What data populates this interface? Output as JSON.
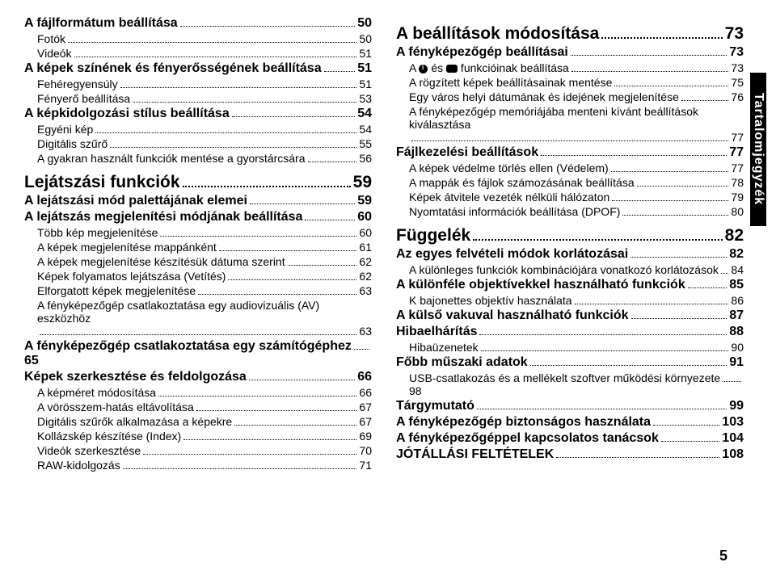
{
  "sideTab": "Tartalomjegyzék",
  "pageNumber": "5",
  "left": [
    {
      "lvl": 1,
      "label": "A fájlformátum beállítása",
      "page": "50"
    },
    {
      "lvl": 2,
      "label": "Fotók",
      "page": "50"
    },
    {
      "lvl": 2,
      "label": "Videók",
      "page": "51"
    },
    {
      "lvl": 1,
      "label": "A képek színének és fényerősségének beállítása",
      "page": "51"
    },
    {
      "lvl": 2,
      "label": "Fehéregyensúly",
      "page": "51"
    },
    {
      "lvl": 2,
      "label": "Fényerő beállítása",
      "page": "53"
    },
    {
      "lvl": 1,
      "label": "A képkidolgozási stílus beállítása",
      "page": "54"
    },
    {
      "lvl": 2,
      "label": "Egyéni kép",
      "page": "54"
    },
    {
      "lvl": 2,
      "label": "Digitális szűrő",
      "page": "55"
    },
    {
      "lvl": 2,
      "label": "A gyakran használt funkciók mentése a gyorstárcsára",
      "page": "56"
    },
    {
      "lvl": 0,
      "label": "Lejátszási funkciók",
      "page": "59"
    },
    {
      "lvl": 1,
      "label": "A lejátszási mód palettájának elemei",
      "page": "59"
    },
    {
      "lvl": 1,
      "label": "A lejátszás megjelenítési módjának beállítása",
      "page": "60"
    },
    {
      "lvl": 2,
      "label": "Több kép megjelenítése",
      "page": "60"
    },
    {
      "lvl": 2,
      "label": "A képek megjelenítése mappánként",
      "page": "61"
    },
    {
      "lvl": 2,
      "label": "A képek megjelenítése készítésük dátuma szerint",
      "page": "62"
    },
    {
      "lvl": 2,
      "label": "Képek folyamatos lejátszása (Vetítés)",
      "page": "62"
    },
    {
      "lvl": 2,
      "label": "Elforgatott képek megjelenítése",
      "page": "63"
    },
    {
      "lvl": 2,
      "label": "A fényképezőgép csatlakoztatása egy audiovizuális (AV) eszközhöz",
      "page": "63",
      "multi": true
    },
    {
      "lvl": 1,
      "label": "A fényképezőgép csatlakoztatása egy számítógéphez",
      "page": "65",
      "multi": true
    },
    {
      "lvl": 1,
      "label": "Képek szerkesztése és feldolgozása",
      "page": "66"
    },
    {
      "lvl": 2,
      "label": "A képméret módosítása",
      "page": "66"
    },
    {
      "lvl": 2,
      "label": "A vörösszem-hatás eltávolítása",
      "page": "67"
    },
    {
      "lvl": 2,
      "label": "Digitális szűrők alkalmazása a képekre",
      "page": "67"
    },
    {
      "lvl": 2,
      "label": "Kollázskép készítése (Index)",
      "page": "69"
    },
    {
      "lvl": 2,
      "label": "Videók szerkesztése",
      "page": "70"
    },
    {
      "lvl": 2,
      "label": "RAW-kidolgozás",
      "page": "71"
    }
  ],
  "right": [
    {
      "lvl": 0,
      "label": "A beállítások módosítása",
      "page": "73"
    },
    {
      "lvl": 1,
      "label": "A fényképezőgép beállításai",
      "page": "73"
    },
    {
      "lvl": 2,
      "label": "A __ICON1__ és __ICON2__ funkcióinak beállítása",
      "page": "73",
      "icons": true
    },
    {
      "lvl": 2,
      "label": "A rögzített képek beállításainak mentése",
      "page": "75"
    },
    {
      "lvl": 2,
      "label": "Egy város helyi dátumának és idejének megjelenítése",
      "page": "76"
    },
    {
      "lvl": 2,
      "label": "A fényképezőgép memóriájába menteni kívánt beállítások kiválasztása",
      "page": "77",
      "multi": true
    },
    {
      "lvl": 1,
      "label": "Fájlkezelési beállítások",
      "page": "77"
    },
    {
      "lvl": 2,
      "label": "A képek védelme törlés ellen (Védelem)",
      "page": "77"
    },
    {
      "lvl": 2,
      "label": "A mappák és fájlok számozásának beállítása",
      "page": "78"
    },
    {
      "lvl": 2,
      "label": "Képek átvitele vezeték nélküli hálózaton",
      "page": "79"
    },
    {
      "lvl": 2,
      "label": "Nyomtatási információk beállítása (DPOF)",
      "page": "80"
    },
    {
      "lvl": 0,
      "label": "Függelék",
      "page": "82"
    },
    {
      "lvl": 1,
      "label": "Az egyes felvételi módok korlátozásai",
      "page": "82"
    },
    {
      "lvl": 2,
      "label": "A különleges funkciók kombinációjára vonatkozó korlátozások",
      "page": "84",
      "multi": true
    },
    {
      "lvl": 1,
      "label": "A különféle objektívekkel használható funkciók",
      "page": "85"
    },
    {
      "lvl": 2,
      "label": "K bajonettes objektív használata",
      "page": "86"
    },
    {
      "lvl": 1,
      "label": "A külső vakuval használható funkciók",
      "page": "87"
    },
    {
      "lvl": 1,
      "label": "Hibaelhárítás",
      "page": "88"
    },
    {
      "lvl": 2,
      "label": "Hibaüzenetek",
      "page": "90"
    },
    {
      "lvl": 1,
      "label": "Főbb műszaki adatok",
      "page": "91"
    },
    {
      "lvl": 2,
      "label": "USB-csatlakozás és a mellékelt szoftver működési környezete",
      "page": "98",
      "multi": true
    },
    {
      "lvl": 1,
      "label": "Tárgymutató",
      "page": "99"
    },
    {
      "lvl": 1,
      "label": "A fényképezőgép biztonságos használata",
      "page": "103"
    },
    {
      "lvl": 1,
      "label": "A fényképezőgéppel kapcsolatos tanácsok",
      "page": "104"
    },
    {
      "lvl": 1,
      "label": "JÓTÁLLÁSI FELTÉTELEK",
      "page": "108"
    }
  ]
}
